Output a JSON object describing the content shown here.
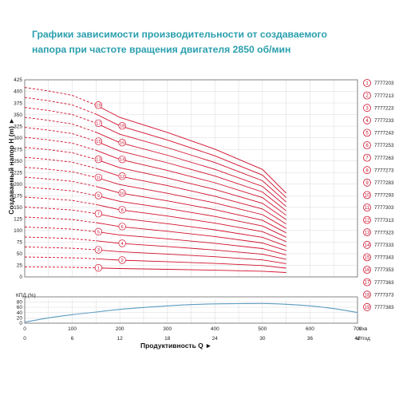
{
  "title": {
    "line1": "Графики зависимости производительности от создаваемого",
    "line2": "напора при частоте вращения двигателя 2850 об/мин"
  },
  "chart_data": [
    {
      "type": "line",
      "title": "",
      "ylabel": "Создаваемый напор H (m) ►",
      "xlabel": "",
      "ylim": [
        0,
        425
      ],
      "yticks": [
        "0",
        "25",
        "50",
        "75",
        "100",
        "125",
        "150",
        "175",
        "200",
        "225",
        "250",
        "275",
        "300",
        "325",
        "350",
        "375",
        "400",
        "425"
      ],
      "xlim": [
        0,
        700
      ],
      "grid": true,
      "legend_placement": "right",
      "colors": {
        "curve": "#d0102c",
        "grid": "#cfcfcf"
      },
      "series": [
        {
          "label_no": "1",
          "name": "7777203",
          "y": [
            21.5,
            21.1,
            20.6,
            19.5,
            18.1,
            16.4,
            14.5,
            12.2,
            9.5
          ]
        },
        {
          "label_no": "2",
          "name": "7777213",
          "y": [
            43,
            42.2,
            41.2,
            39,
            36.2,
            32.8,
            29,
            24.4,
            19
          ]
        },
        {
          "label_no": "3",
          "name": "7777223",
          "y": [
            64.5,
            63.3,
            61.8,
            58.5,
            54.3,
            49.2,
            43.5,
            36.6,
            28.5
          ]
        },
        {
          "label_no": "4",
          "name": "7777233",
          "y": [
            86,
            84.4,
            82.4,
            78,
            72.4,
            65.6,
            58,
            48.8,
            38
          ]
        },
        {
          "label_no": "5",
          "name": "7777243",
          "y": [
            107.5,
            105.5,
            103,
            97.5,
            90.5,
            82,
            72.5,
            61,
            47.5
          ]
        },
        {
          "label_no": "6",
          "name": "7777253",
          "y": [
            129,
            126.6,
            123.6,
            117,
            108.6,
            98.4,
            87,
            73.2,
            57
          ]
        },
        {
          "label_no": "7",
          "name": "7777263",
          "y": [
            150.5,
            147.7,
            144.2,
            136.5,
            126.7,
            114.8,
            101.5,
            85.4,
            66.5
          ]
        },
        {
          "label_no": "8",
          "name": "7777273",
          "y": [
            172,
            168.8,
            164.8,
            156,
            144.8,
            131.2,
            116,
            97.6,
            76
          ]
        },
        {
          "label_no": "9",
          "name": "7777283",
          "y": [
            193.5,
            189.9,
            185.4,
            175.5,
            162.9,
            147.6,
            130.5,
            109.8,
            85.5
          ]
        },
        {
          "label_no": "10",
          "name": "7777293",
          "y": [
            215,
            211,
            206,
            195,
            181,
            164,
            145,
            122,
            95
          ]
        },
        {
          "label_no": "11",
          "name": "7777303",
          "y": [
            236.5,
            232.1,
            226.6,
            214.5,
            199.1,
            180.4,
            159.5,
            134.2,
            104.5
          ]
        },
        {
          "label_no": "12",
          "name": "7777313",
          "y": [
            258,
            253.2,
            247.2,
            234,
            217.2,
            196.8,
            174,
            146.4,
            114
          ]
        },
        {
          "label_no": "13",
          "name": "7777323",
          "y": [
            279.5,
            274.3,
            267.8,
            253.5,
            235.3,
            213.2,
            188.5,
            158.6,
            123.5
          ]
        },
        {
          "label_no": "14",
          "name": "7777333",
          "y": [
            301,
            295.4,
            288.4,
            273,
            253.4,
            229.6,
            203,
            170.8,
            133
          ]
        },
        {
          "label_no": "15",
          "name": "7777343",
          "y": [
            322.5,
            316.5,
            309,
            292.5,
            271.5,
            246,
            217.5,
            183,
            142.5
          ]
        },
        {
          "label_no": "16",
          "name": "7777353",
          "y": [
            344,
            337.6,
            329.6,
            312,
            289.6,
            262.4,
            232,
            195.2,
            152
          ]
        },
        {
          "label_no": "17",
          "name": "7777363",
          "y": [
            365.5,
            358.7,
            350.2,
            331.5,
            307.7,
            278.8,
            246.5,
            207.4,
            161.5
          ]
        },
        {
          "label_no": "18",
          "name": "7777373",
          "y": [
            387,
            379.8,
            370.8,
            351,
            325.8,
            295.2,
            261,
            219.6,
            171
          ]
        },
        {
          "label_no": "19",
          "name": "7777383",
          "y": [
            408.5,
            400.9,
            391.4,
            370.5,
            343.9,
            311.6,
            275.5,
            231.8,
            180.5
          ]
        }
      ],
      "x_dashed": [
        0,
        50,
        100,
        150
      ],
      "x_solid": [
        150,
        200,
        300,
        400,
        500,
        550,
        600,
        650,
        700
      ]
    },
    {
      "type": "line",
      "title": "",
      "ylabel": "КПД (%)",
      "ylim": [
        0,
        90
      ],
      "yticks": [
        "0",
        "20",
        "40",
        "60",
        "80"
      ],
      "xlim": [
        0,
        700
      ],
      "grid": true,
      "x_primary": {
        "ticks": [
          "0",
          "100",
          "200",
          "300",
          "400",
          "500",
          "600",
          "700"
        ],
        "unit": "л/хв"
      },
      "x_secondary": {
        "ticks": [
          "0",
          "6",
          "12",
          "18",
          "24",
          "30",
          "36",
          "42"
        ],
        "unit": "м³/год"
      },
      "xlabel": "Продуктивность Q ►",
      "colors": {
        "curve": "#5b9bc0"
      },
      "series": [
        {
          "name": "",
          "x": [
            0,
            50,
            100,
            150,
            200,
            250,
            300,
            350,
            400,
            450,
            500,
            550,
            600,
            650,
            700
          ],
          "y": [
            4,
            20,
            32,
            42,
            52,
            59,
            65,
            70,
            72.5,
            73.5,
            74,
            71,
            65,
            55,
            40
          ]
        }
      ]
    }
  ]
}
